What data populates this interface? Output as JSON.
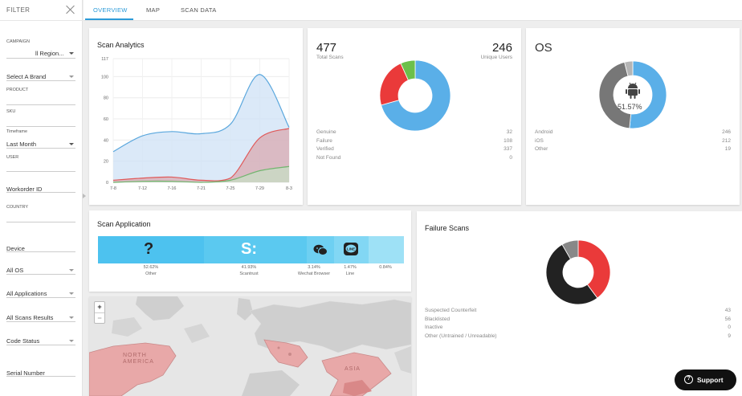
{
  "sidebar": {
    "title": "FILTER",
    "campaign_label": "Campaign",
    "campaign_value": "ll Region...",
    "brand_placeholder": "Select A Brand",
    "product_label": "PRODUCT",
    "sku_label": "SKU",
    "timeframe_label": "Timeframe",
    "timeframe_value": "Last Month",
    "user_label": "USER",
    "workorder_placeholder": "Workorder ID",
    "country_label": "COUNTRY",
    "device_placeholder": "Device",
    "os_value": "All OS",
    "applications_value": "All Applications",
    "scan_results_value": "All Scans Results",
    "code_status_value": "Code Status",
    "serial_placeholder": "Serial Number"
  },
  "tabs": [
    {
      "label": "OVERVIEW",
      "active": true
    },
    {
      "label": "MAP",
      "active": false
    },
    {
      "label": "SCAN DATA",
      "active": false
    }
  ],
  "scan_analytics": {
    "title": "Scan Analytics"
  },
  "chart_data": {
    "type": "area",
    "categories": [
      "7-8",
      "7-12",
      "7-16",
      "7-21",
      "7-25",
      "7-29",
      "8-3"
    ],
    "y_ticks": [
      "0",
      "20",
      "40",
      "60",
      "80",
      "100",
      "117"
    ],
    "ylim": [
      0,
      117
    ],
    "grid": true,
    "series": [
      {
        "color": "#5aa7dd",
        "fill": "#cfe2f5",
        "values": [
          29,
          44,
          48,
          46,
          55,
          102,
          52
        ]
      },
      {
        "color": "#e05a5a",
        "fill": "#d9aab2",
        "values": [
          2,
          4,
          5,
          2,
          4,
          42,
          51
        ]
      },
      {
        "color": "#72b56f",
        "fill": "#c7ddc4",
        "values": [
          0,
          1,
          1,
          0,
          2,
          11,
          15
        ]
      }
    ]
  },
  "totals": {
    "total_scans": "477",
    "total_scans_label": "Total Scans",
    "unique_users": "246",
    "unique_users_label": "Unique Users",
    "rows": [
      {
        "label": "Genuine",
        "value": "32"
      },
      {
        "label": "Failure",
        "value": "108"
      },
      {
        "label": "Verified",
        "value": "337"
      },
      {
        "label": "Not Found",
        "value": "0"
      }
    ],
    "donut": [
      {
        "value": 337,
        "color": "#5aafe8"
      },
      {
        "value": 108,
        "color": "#ea3a3a"
      },
      {
        "value": 32,
        "color": "#6cc04a"
      }
    ]
  },
  "os": {
    "title": "OS",
    "center_pct": "51.57%",
    "rows": [
      {
        "label": "Android",
        "value": "246"
      },
      {
        "label": "iOS",
        "value": "212"
      },
      {
        "label": "Other",
        "value": "19"
      }
    ],
    "donut": [
      {
        "value": 246,
        "color": "#5aafe8"
      },
      {
        "value": 212,
        "color": "#777777"
      },
      {
        "value": 19,
        "color": "#b5b5b5"
      }
    ],
    "icon": "android-icon"
  },
  "scan_application": {
    "title": "Scan Application",
    "apps": [
      {
        "pct": "52.62%",
        "label": "Other",
        "icon": "question-icon",
        "color": "#4dc2ef",
        "share": 52.62
      },
      {
        "pct": "41.93%",
        "label": "Scantrust",
        "icon": "scantrust-icon",
        "color": "#5bc9f0",
        "share": 41.93
      },
      {
        "pct": "3.14%",
        "label": "Wechat Browser",
        "icon": "wechat-icon",
        "color": "#6ed0f2",
        "share": 3.14
      },
      {
        "pct": "1.47%",
        "label": "Line",
        "icon": "line-icon",
        "color": "#82d7f4",
        "share": 1.47
      },
      {
        "pct": "0.84%",
        "label": "",
        "icon": "",
        "color": "#9ee1f6",
        "share": 0.84
      }
    ]
  },
  "map": {
    "zoom_in": "+",
    "zoom_out": "−",
    "labels": {
      "north_america": "NORTH AMERICA",
      "asia": "ASIA"
    },
    "colors": {
      "ocean": "#e6e6e6",
      "land": "#cfcfcf",
      "highlight": "#e8a8a8"
    }
  },
  "failure_scans": {
    "title": "Failure Scans",
    "rows": [
      {
        "label": "Suspected Counterfeit",
        "value": "43"
      },
      {
        "label": "Blacklisted",
        "value": "56"
      },
      {
        "label": "Inactive",
        "value": "0"
      },
      {
        "label": "Other (Untrained / Unreadable)",
        "value": "9"
      }
    ],
    "donut": [
      {
        "value": 43,
        "color": "#ea3a3a"
      },
      {
        "value": 56,
        "color": "#222222"
      },
      {
        "value": 9,
        "color": "#888888"
      }
    ]
  },
  "support": {
    "label": "Support",
    "icon": "help-icon"
  }
}
